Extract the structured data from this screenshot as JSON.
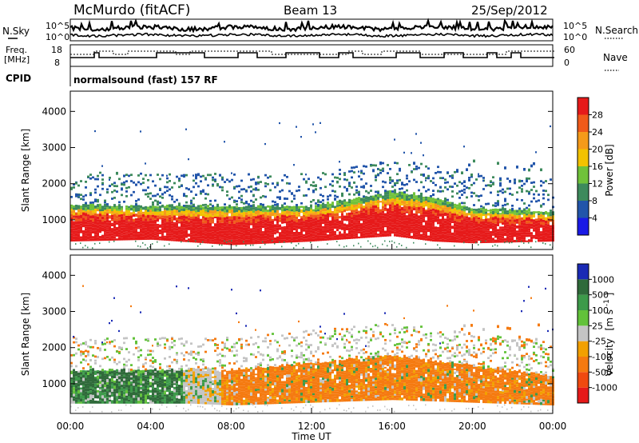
{
  "header": {
    "station": "McMurdo (fitACF)",
    "beam": "Beam 13",
    "date": "25/Sep/2012"
  },
  "summary_panels": {
    "nsky_label": "N.Sky",
    "nsky_ticks": [
      "10^5",
      "10^0"
    ],
    "nsearch_label": "N.Search",
    "nsearch_ticks": [
      "10^5",
      "10^0"
    ],
    "freq_label_1": "Freq.",
    "freq_label_2": "[MHz]",
    "freq_ticks": [
      "18",
      "8"
    ],
    "nave_label": "Nave",
    "nave_ticks": [
      "60",
      "0"
    ],
    "cpid_label": "CPID",
    "cpid_value": "normalsound (fast) 157 RF"
  },
  "chart_data": [
    {
      "type": "heatmap",
      "name": "power-panel",
      "ylabel": "Slant Range [km]",
      "ylim": [
        180,
        4560
      ],
      "yticks": [
        "1000",
        "2000",
        "3000",
        "4000"
      ],
      "xlim_hours": [
        0,
        24
      ],
      "colorbar": {
        "label": "Power [dB]",
        "levels": [
          "4",
          "8",
          "12",
          "16",
          "20",
          "24",
          "28"
        ],
        "colors": [
          "#1a1ae6",
          "#2255aa",
          "#3d8a5c",
          "#70c23a",
          "#f2c200",
          "#f59a1a",
          "#f05a1a",
          "#e61a1a"
        ]
      },
      "core_band_km": [
        {
          "h": 0,
          "lo": 400,
          "hi": 1400
        },
        {
          "h": 4,
          "lo": 450,
          "hi": 1350
        },
        {
          "h": 8,
          "lo": 300,
          "hi": 1350
        },
        {
          "h": 12,
          "lo": 400,
          "hi": 1350
        },
        {
          "h": 16,
          "lo": 550,
          "hi": 1750
        },
        {
          "h": 18,
          "lo": 400,
          "hi": 1600
        },
        {
          "h": 20,
          "lo": 350,
          "hi": 1300
        },
        {
          "h": 24,
          "lo": 400,
          "hi": 1200
        }
      ]
    },
    {
      "type": "heatmap",
      "name": "velocity-panel",
      "ylabel": "Slant Range [km]",
      "ylim": [
        180,
        4560
      ],
      "yticks": [
        "1000",
        "2000",
        "3000",
        "4000"
      ],
      "xlim_hours": [
        0,
        24
      ],
      "colorbar": {
        "label": "Velocity",
        "unit": "[m s",
        "unit_sup": "-1",
        "unit_end": "]",
        "levels": [
          "1000",
          "500",
          "100",
          "25",
          "-25",
          "-100",
          "-500",
          "-1000"
        ],
        "colors": [
          "#1a2ab5",
          "#2f6a3a",
          "#3d9a4a",
          "#62c23a",
          "#c4c4c4",
          "#f2a000",
          "#f57a10",
          "#f04a10",
          "#e61a1a"
        ]
      },
      "core_band_km": [
        {
          "h": 0,
          "lo": 450,
          "hi": 1350,
          "dominant": "green"
        },
        {
          "h": 6,
          "lo": 450,
          "hi": 1350,
          "dominant": "grey"
        },
        {
          "h": 8,
          "lo": 400,
          "hi": 1350,
          "dominant": "orange"
        },
        {
          "h": 16,
          "lo": 550,
          "hi": 1750,
          "dominant": "orange"
        },
        {
          "h": 24,
          "lo": 400,
          "hi": 1200,
          "dominant": "orange"
        }
      ]
    }
  ],
  "x_axis": {
    "ticks": [
      "00:00",
      "04:00",
      "08:00",
      "12:00",
      "16:00",
      "20:00",
      "00:00"
    ],
    "label": "Time UT"
  }
}
